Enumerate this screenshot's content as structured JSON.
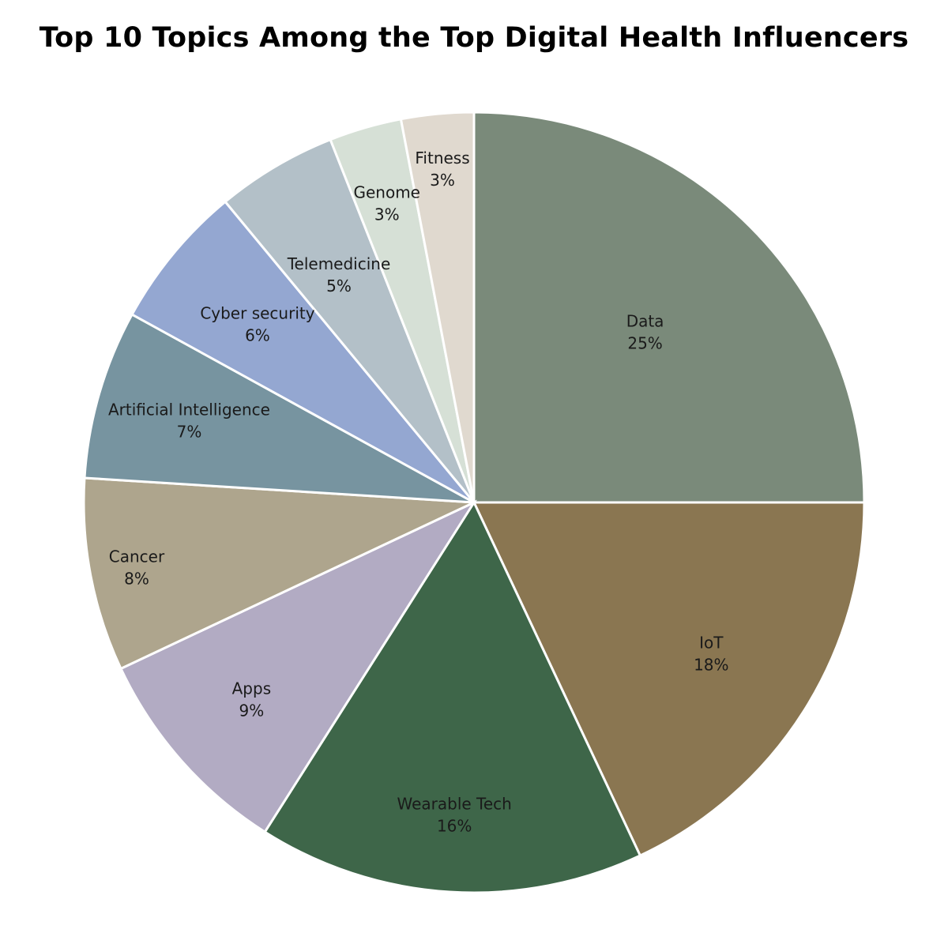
{
  "chart_data": {
    "type": "pie",
    "title": "Top 10 Topics Among the Top Digital Health Influencers",
    "slices": [
      {
        "label": "Data",
        "value": 25,
        "display": "25%",
        "color": "#7a8a7a"
      },
      {
        "label": "IoT",
        "value": 18,
        "display": "18%",
        "color": "#8a7651"
      },
      {
        "label": "Wearable Tech",
        "value": 16,
        "display": "16%",
        "color": "#3e6649"
      },
      {
        "label": "Apps",
        "value": 9,
        "display": "9%",
        "color": "#b2abc3"
      },
      {
        "label": "Cancer",
        "value": 8,
        "display": "8%",
        "color": "#aea58d"
      },
      {
        "label": "Artificial Intelligence",
        "value": 7,
        "display": "7%",
        "color": "#7794a0"
      },
      {
        "label": "Cyber security",
        "value": 6,
        "display": "6%",
        "color": "#94a7d1"
      },
      {
        "label": "Telemedicine",
        "value": 5,
        "display": "5%",
        "color": "#b3c0c8"
      },
      {
        "label": "Genome",
        "value": 3,
        "display": "3%",
        "color": "#d6e0d6"
      },
      {
        "label": "Fitness",
        "value": 3,
        "display": "3%",
        "color": "#e0d9cf"
      }
    ],
    "start_angle_deg": 0,
    "direction": "clockwise",
    "legend": "none"
  }
}
